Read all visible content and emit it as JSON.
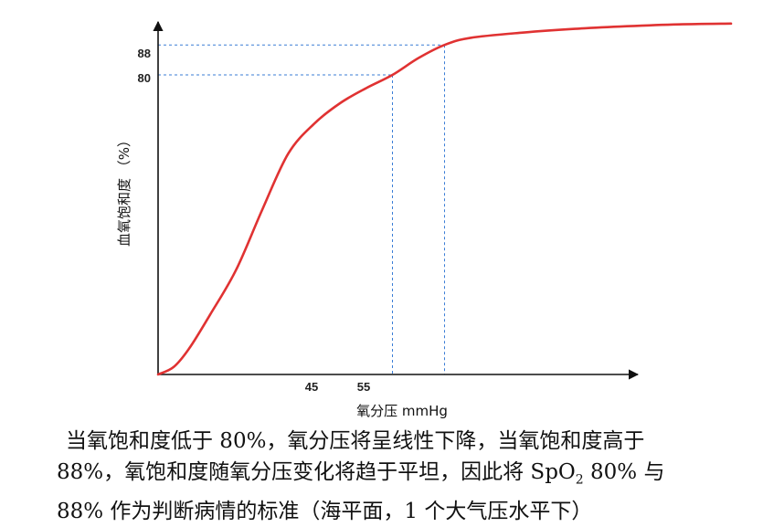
{
  "chart_data": {
    "type": "line",
    "xlabel": "氧分压 mmHg",
    "ylabel": "血氧饱和度 （%）",
    "x_ticks": [
      "45",
      "55"
    ],
    "y_ticks": [
      "88",
      "80"
    ],
    "series": [
      {
        "color": "#e03232",
        "points": [
          [
            0,
            0
          ],
          [
            3,
            2
          ],
          [
            6,
            7
          ],
          [
            10,
            16
          ],
          [
            15,
            28
          ],
          [
            20,
            44
          ],
          [
            25,
            59
          ],
          [
            30,
            67
          ],
          [
            35,
            72.5
          ],
          [
            40,
            76.5
          ],
          [
            45,
            80
          ],
          [
            50,
            84.5
          ],
          [
            55,
            88
          ],
          [
            60,
            89.9
          ],
          [
            70,
            91.3
          ],
          [
            80,
            92.3
          ],
          [
            90,
            93
          ],
          [
            100,
            93.5
          ],
          [
            110,
            93.7
          ]
        ]
      }
    ],
    "reference_lines": [
      {
        "x": 45,
        "y": 80,
        "color": "#3a7dd6"
      },
      {
        "x": 55,
        "y": 88,
        "color": "#3a7dd6"
      }
    ],
    "grid": false
  },
  "caption": {
    "line1": "当氧饱和度低于 80%，氧分压将呈线性下降，当氧饱和度高于",
    "line2_a": "88%，氧饱和度随氧分压变化将趋于平坦，因此将 SpO",
    "line2_sub": "2",
    "line2_b": " 80% 与",
    "line3": "88% 作为判断病情的标准（海平面，1 个大气压水平下）"
  }
}
